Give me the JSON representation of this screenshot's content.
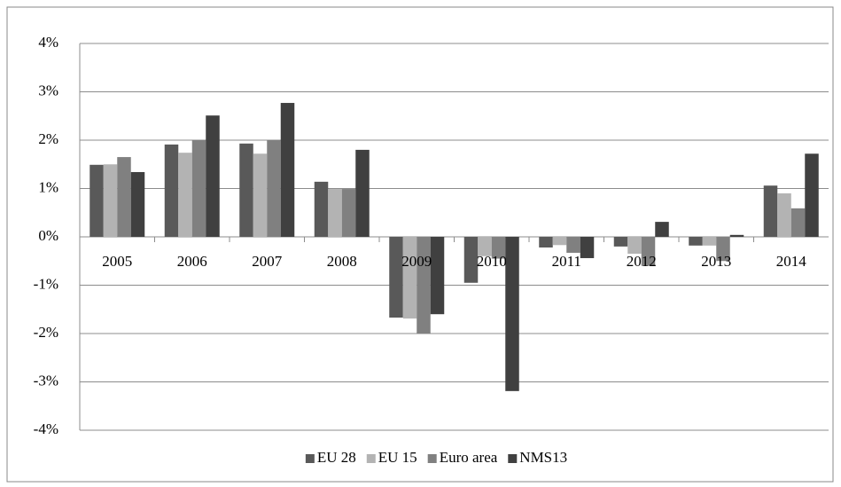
{
  "chart_data": {
    "type": "bar",
    "categories": [
      "2005",
      "2006",
      "2007",
      "2008",
      "2009",
      "2010",
      "2011",
      "2012",
      "2013",
      "2014"
    ],
    "series": [
      {
        "name": "EU 28",
        "color": "#595959",
        "values": [
          1.49,
          1.91,
          1.93,
          1.14,
          -1.67,
          -0.95,
          -0.22,
          -0.2,
          -0.18,
          1.06
        ]
      },
      {
        "name": "EU 15",
        "color": "#b3b3b3",
        "values": [
          1.5,
          1.74,
          1.72,
          0.99,
          -1.69,
          -0.4,
          -0.17,
          -0.35,
          -0.18,
          0.9
        ]
      },
      {
        "name": "Euro area",
        "color": "#808080",
        "values": [
          1.65,
          2.0,
          2.0,
          0.99,
          -2.0,
          -0.45,
          -0.33,
          -0.6,
          -0.5,
          0.59
        ]
      },
      {
        "name": "NMS13",
        "color": "#404040",
        "values": [
          1.34,
          2.51,
          2.77,
          1.8,
          -1.6,
          -3.19,
          -0.44,
          0.31,
          0.04,
          1.72
        ]
      }
    ],
    "ylim": [
      -4,
      4
    ],
    "yticks": [
      {
        "value": -4,
        "label": "-4%"
      },
      {
        "value": -3,
        "label": "-3%"
      },
      {
        "value": -2,
        "label": "-2%"
      },
      {
        "value": -1,
        "label": "-1%"
      },
      {
        "value": 0,
        "label": "0%"
      },
      {
        "value": 1,
        "label": "1%"
      },
      {
        "value": 2,
        "label": "2%"
      },
      {
        "value": 3,
        "label": "3%"
      },
      {
        "value": 4,
        "label": "4%"
      }
    ],
    "grid": true,
    "legend": "bottom"
  }
}
